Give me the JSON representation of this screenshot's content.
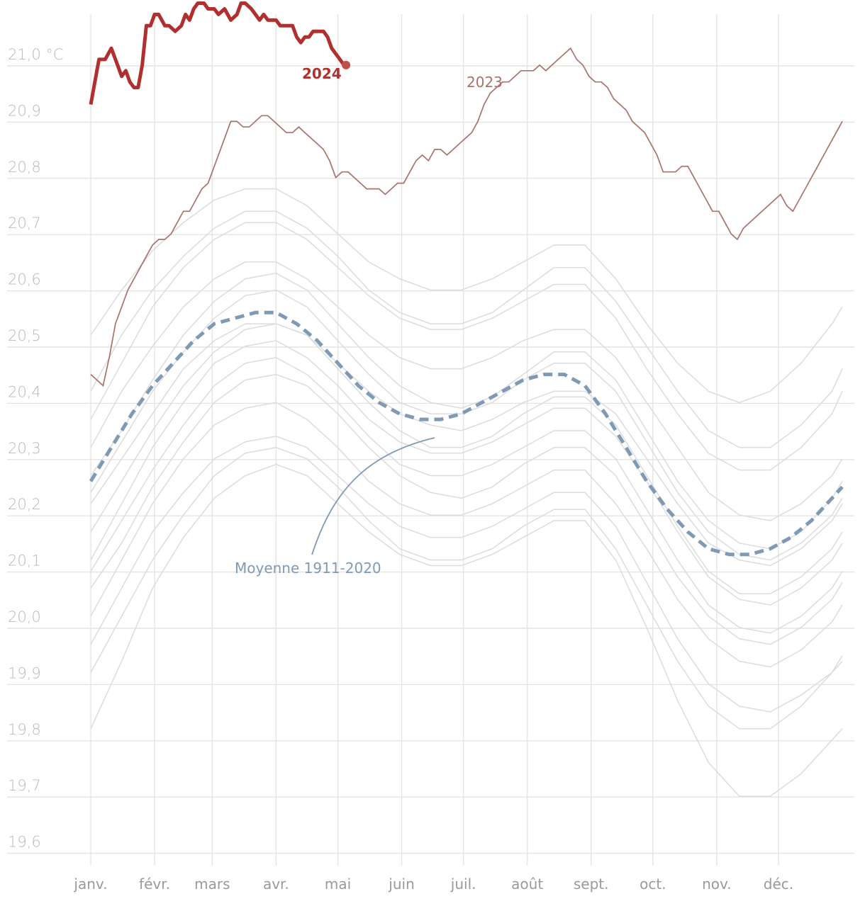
{
  "chart_data": {
    "type": "line",
    "title": "",
    "xlabel": "",
    "ylabel": "",
    "y_unit_label": "°C",
    "ylim": [
      19.58,
      21.2
    ],
    "yticks": [
      19.6,
      19.7,
      19.8,
      19.9,
      20.0,
      20.1,
      20.2,
      20.3,
      20.4,
      20.5,
      20.6,
      20.7,
      20.8,
      20.9,
      21.0
    ],
    "ytick_labels": [
      "19,6",
      "19,7",
      "19,8",
      "19,9",
      "20,0",
      "20,1",
      "20,2",
      "20,3",
      "20,4",
      "20,5",
      "20,6",
      "20,7",
      "20,8",
      "20,9",
      "21,0 °C"
    ],
    "x_domain_days": [
      0,
      365
    ],
    "months": [
      {
        "label": "janv.",
        "day": 0
      },
      {
        "label": "févr.",
        "day": 31
      },
      {
        "label": "mars",
        "day": 59
      },
      {
        "label": "avr.",
        "day": 90
      },
      {
        "label": "mai",
        "day": 120
      },
      {
        "label": "juin",
        "day": 151
      },
      {
        "label": "juil.",
        "day": 181
      },
      {
        "label": "août",
        "day": 212
      },
      {
        "label": "sept.",
        "day": 243
      },
      {
        "label": "oct.",
        "day": 273
      },
      {
        "label": "nov.",
        "day": 304
      },
      {
        "label": "déc.",
        "day": 334
      }
    ],
    "grid": true,
    "series": [
      {
        "name": "2024",
        "color": "#b0302f",
        "x": [
          0,
          2,
          4,
          7,
          10,
          13,
          15,
          17,
          19,
          21,
          23,
          25,
          27,
          29,
          31,
          33,
          36,
          38,
          41,
          44,
          46,
          48,
          50,
          52,
          55,
          57,
          60,
          62,
          65,
          68,
          71,
          73,
          75,
          78,
          80,
          82,
          84,
          86,
          88,
          90,
          92,
          95,
          98,
          100,
          102,
          104,
          106,
          108,
          111,
          113,
          115,
          117,
          119,
          121,
          123,
          124
        ],
        "values": [
          20.91,
          20.95,
          20.99,
          20.99,
          21.01,
          20.98,
          20.96,
          20.97,
          20.95,
          20.94,
          20.94,
          20.98,
          21.05,
          21.05,
          21.07,
          21.07,
          21.05,
          21.05,
          21.04,
          21.05,
          21.07,
          21.06,
          21.08,
          21.09,
          21.09,
          21.08,
          21.08,
          21.07,
          21.08,
          21.06,
          21.07,
          21.09,
          21.09,
          21.08,
          21.07,
          21.06,
          21.07,
          21.06,
          21.06,
          21.06,
          21.05,
          21.05,
          21.05,
          21.03,
          21.02,
          21.03,
          21.03,
          21.04,
          21.04,
          21.04,
          21.03,
          21.01,
          21.0,
          20.99,
          20.98,
          20.98
        ],
        "label": "2024"
      },
      {
        "name": "2023",
        "color": "#a8736a",
        "x": [
          0,
          3,
          6,
          9,
          12,
          15,
          18,
          21,
          24,
          27,
          30,
          33,
          36,
          39,
          42,
          45,
          48,
          51,
          54,
          57,
          59,
          62,
          65,
          68,
          71,
          74,
          77,
          80,
          83,
          86,
          89,
          92,
          95,
          98,
          101,
          104,
          107,
          110,
          113,
          116,
          119,
          122,
          125,
          128,
          131,
          134,
          137,
          140,
          143,
          146,
          149,
          152,
          155,
          158,
          161,
          164,
          167,
          170,
          173,
          176,
          179,
          182,
          185,
          188,
          191,
          194,
          197,
          200,
          203,
          206,
          209,
          212,
          215,
          218,
          221,
          224,
          227,
          230,
          233,
          236,
          239,
          242,
          245,
          248,
          251,
          254,
          257,
          260,
          263,
          266,
          269,
          272,
          275,
          278,
          281,
          284,
          287,
          290,
          293,
          296,
          299,
          302,
          305,
          308,
          311,
          314,
          317,
          320,
          323,
          326,
          329,
          332,
          335,
          338,
          341,
          344,
          347,
          350,
          353,
          356,
          359,
          362,
          365
        ],
        "values": [
          20.43,
          20.42,
          20.41,
          20.46,
          20.52,
          20.55,
          20.58,
          20.6,
          20.62,
          20.64,
          20.66,
          20.67,
          20.67,
          20.68,
          20.7,
          20.72,
          20.72,
          20.74,
          20.76,
          20.77,
          20.79,
          20.82,
          20.85,
          20.88,
          20.88,
          20.87,
          20.87,
          20.88,
          20.89,
          20.89,
          20.88,
          20.87,
          20.86,
          20.86,
          20.87,
          20.86,
          20.85,
          20.84,
          20.83,
          20.81,
          20.78,
          20.79,
          20.79,
          20.78,
          20.77,
          20.76,
          20.76,
          20.76,
          20.75,
          20.76,
          20.77,
          20.77,
          20.79,
          20.81,
          20.82,
          20.81,
          20.83,
          20.83,
          20.82,
          20.83,
          20.84,
          20.85,
          20.86,
          20.88,
          20.91,
          20.93,
          20.94,
          20.95,
          20.95,
          20.96,
          20.97,
          20.97,
          20.97,
          20.98,
          20.97,
          20.98,
          20.99,
          21.0,
          21.01,
          20.99,
          20.98,
          20.96,
          20.95,
          20.95,
          20.94,
          20.92,
          20.91,
          20.9,
          20.88,
          20.87,
          20.86,
          20.84,
          20.82,
          20.79,
          20.79,
          20.79,
          20.8,
          20.8,
          20.78,
          20.76,
          20.74,
          20.72,
          20.72,
          20.7,
          20.68,
          20.67,
          20.69,
          20.7,
          20.71,
          20.72,
          20.73,
          20.74,
          20.75,
          20.73,
          20.72,
          20.74,
          20.76,
          20.78,
          20.8,
          20.82,
          20.84,
          20.86,
          20.88
        ],
        "label": "2023"
      },
      {
        "name": "Moyenne 1911-2020",
        "color": "#7f9ab5",
        "x": [
          0,
          10,
          20,
          30,
          40,
          50,
          60,
          70,
          80,
          90,
          100,
          110,
          120,
          130,
          140,
          150,
          160,
          170,
          180,
          190,
          200,
          210,
          220,
          230,
          240,
          250,
          260,
          270,
          280,
          290,
          300,
          310,
          320,
          330,
          340,
          350,
          360,
          365
        ],
        "values": [
          20.24,
          20.3,
          20.36,
          20.41,
          20.45,
          20.49,
          20.52,
          20.53,
          20.54,
          20.54,
          20.52,
          20.49,
          20.45,
          20.41,
          20.38,
          20.36,
          20.35,
          20.35,
          20.36,
          20.38,
          20.4,
          20.42,
          20.43,
          20.43,
          20.41,
          20.36,
          20.3,
          20.24,
          20.19,
          20.15,
          20.12,
          20.11,
          20.11,
          20.12,
          20.14,
          20.17,
          20.21,
          20.23
        ],
        "label": "Moyenne 1911-2020"
      }
    ],
    "background_series": {
      "color": "#dcdcdc",
      "x": [
        0,
        15,
        30,
        45,
        60,
        75,
        90,
        105,
        120,
        135,
        150,
        165,
        180,
        195,
        210,
        225,
        240,
        255,
        270,
        285,
        300,
        315,
        330,
        345,
        360,
        365
      ],
      "series_values": [
        [
          20.2,
          20.28,
          20.36,
          20.44,
          20.49,
          20.52,
          20.52,
          20.5,
          20.45,
          20.4,
          20.36,
          20.34,
          20.33,
          20.35,
          20.38,
          20.4,
          20.4,
          20.36,
          20.28,
          20.2,
          20.13,
          20.1,
          20.09,
          20.12,
          20.17,
          20.2
        ],
        [
          20.1,
          20.2,
          20.3,
          20.38,
          20.45,
          20.48,
          20.49,
          20.46,
          20.41,
          20.35,
          20.31,
          20.29,
          20.29,
          20.31,
          20.34,
          20.37,
          20.37,
          20.32,
          20.24,
          20.15,
          20.07,
          20.03,
          20.02,
          20.05,
          20.1,
          20.13
        ],
        [
          20.3,
          20.4,
          20.48,
          20.55,
          20.6,
          20.63,
          20.63,
          20.6,
          20.55,
          20.5,
          20.46,
          20.44,
          20.44,
          20.46,
          20.49,
          20.51,
          20.51,
          20.46,
          20.38,
          20.3,
          20.22,
          20.18,
          20.17,
          20.2,
          20.25,
          20.28
        ],
        [
          20.0,
          20.1,
          20.2,
          20.28,
          20.34,
          20.37,
          20.38,
          20.35,
          20.3,
          20.24,
          20.2,
          20.18,
          20.18,
          20.2,
          20.23,
          20.26,
          20.26,
          20.2,
          20.12,
          20.03,
          19.96,
          19.92,
          19.91,
          19.94,
          19.99,
          20.02
        ],
        [
          20.4,
          20.5,
          20.58,
          20.64,
          20.69,
          20.72,
          20.72,
          20.69,
          20.64,
          20.58,
          20.54,
          20.52,
          20.52,
          20.54,
          20.58,
          20.62,
          20.62,
          20.56,
          20.48,
          20.4,
          20.33,
          20.3,
          20.3,
          20.34,
          20.4,
          20.44
        ],
        [
          19.95,
          20.05,
          20.15,
          20.22,
          20.28,
          20.31,
          20.32,
          20.3,
          20.25,
          20.2,
          20.16,
          20.14,
          20.14,
          20.16,
          20.19,
          20.22,
          20.22,
          20.16,
          20.06,
          19.96,
          19.88,
          19.84,
          19.83,
          19.86,
          19.9,
          19.92
        ],
        [
          20.25,
          20.33,
          20.42,
          20.5,
          20.56,
          20.6,
          20.61,
          20.58,
          20.52,
          20.46,
          20.41,
          20.38,
          20.37,
          20.39,
          20.43,
          20.47,
          20.47,
          20.42,
          20.33,
          20.24,
          20.17,
          20.13,
          20.12,
          20.15,
          20.21,
          20.24
        ],
        [
          20.05,
          20.13,
          20.23,
          20.31,
          20.38,
          20.42,
          20.43,
          20.41,
          20.36,
          20.3,
          20.25,
          20.22,
          20.21,
          20.23,
          20.27,
          20.3,
          20.3,
          20.25,
          20.16,
          20.07,
          20.0,
          19.96,
          19.95,
          19.98,
          20.03,
          20.06
        ],
        [
          20.35,
          20.45,
          20.55,
          20.62,
          20.67,
          20.7,
          20.7,
          20.67,
          20.62,
          20.57,
          20.53,
          20.51,
          20.51,
          20.53,
          20.56,
          20.59,
          20.59,
          20.53,
          20.44,
          20.36,
          20.29,
          20.26,
          20.26,
          20.3,
          20.36,
          20.4
        ],
        [
          19.8,
          19.92,
          20.05,
          20.14,
          20.21,
          20.25,
          20.27,
          20.25,
          20.2,
          20.15,
          20.11,
          20.09,
          20.09,
          20.11,
          20.14,
          20.17,
          20.17,
          20.1,
          19.98,
          19.85,
          19.74,
          19.68,
          19.68,
          19.72,
          19.78,
          19.8
        ],
        [
          20.15,
          20.24,
          20.33,
          20.41,
          20.47,
          20.51,
          20.52,
          20.5,
          20.44,
          20.38,
          20.33,
          20.3,
          20.3,
          20.32,
          20.36,
          20.39,
          20.39,
          20.34,
          20.25,
          20.16,
          20.08,
          20.04,
          20.04,
          20.07,
          20.12,
          20.15
        ],
        [
          20.5,
          20.58,
          20.65,
          20.7,
          20.74,
          20.76,
          20.76,
          20.73,
          20.68,
          20.63,
          20.6,
          20.58,
          20.58,
          20.6,
          20.63,
          20.66,
          20.66,
          20.6,
          20.52,
          20.45,
          20.4,
          20.38,
          20.4,
          20.45,
          20.52,
          20.55
        ],
        [
          19.9,
          20.0,
          20.1,
          20.18,
          20.25,
          20.29,
          20.3,
          20.28,
          20.23,
          20.17,
          20.12,
          20.1,
          20.1,
          20.12,
          20.16,
          20.19,
          20.19,
          20.12,
          20.02,
          19.92,
          19.84,
          19.8,
          19.8,
          19.84,
          19.9,
          19.93
        ],
        [
          20.22,
          20.31,
          20.4,
          20.47,
          20.53,
          20.57,
          20.58,
          20.55,
          20.49,
          20.43,
          20.38,
          20.36,
          20.36,
          20.38,
          20.42,
          20.45,
          20.45,
          20.4,
          20.31,
          20.22,
          20.15,
          20.11,
          20.1,
          20.13,
          20.18,
          20.21
        ],
        [
          20.08,
          20.17,
          20.26,
          20.34,
          20.41,
          20.45,
          20.46,
          20.43,
          20.38,
          20.32,
          20.27,
          20.25,
          20.25,
          20.27,
          20.3,
          20.33,
          20.33,
          20.28,
          20.19,
          20.1,
          20.02,
          19.98,
          19.97,
          20.0,
          20.05,
          20.08
        ]
      ]
    }
  },
  "annotations": {
    "label_2024": "2024",
    "label_2023": "2023",
    "label_mean": "Moyenne 1911-2020"
  }
}
